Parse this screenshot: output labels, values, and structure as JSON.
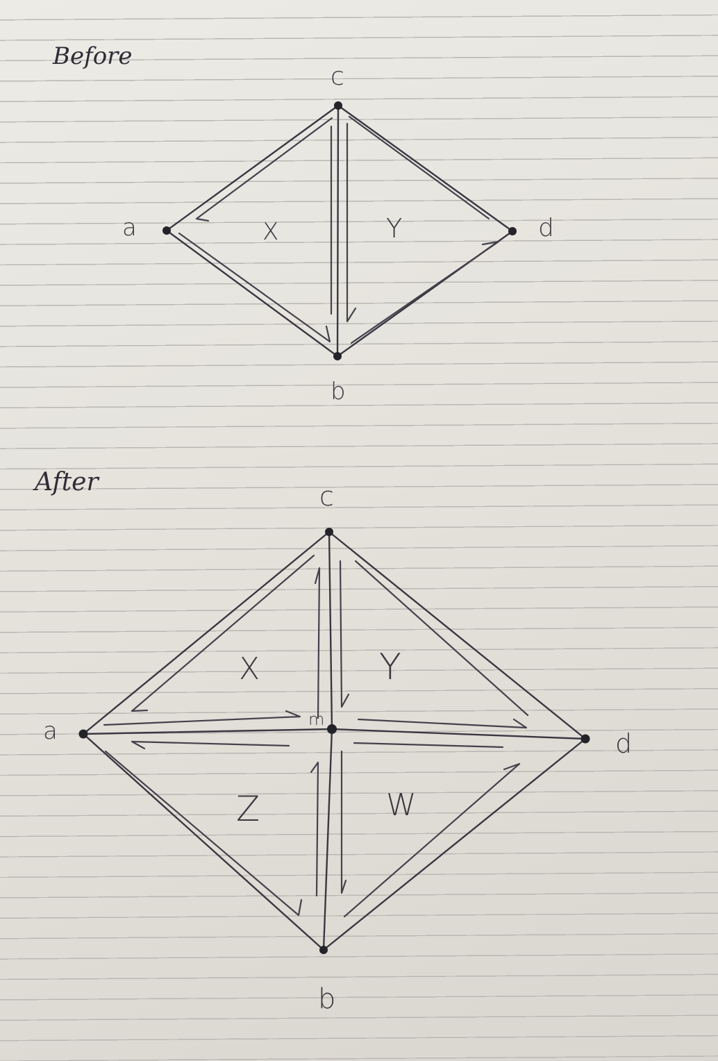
{
  "before": {
    "heading": "Before",
    "vertices": {
      "a": "a",
      "b": "b",
      "c": "c",
      "d": "d"
    },
    "faces": {
      "x": "X",
      "y": "Y"
    }
  },
  "after": {
    "heading": "After",
    "vertices": {
      "a": "a",
      "b": "b",
      "c": "c",
      "d": "d",
      "m": "m"
    },
    "faces": {
      "x": "X",
      "y": "Y",
      "z": "Z",
      "w": "W"
    }
  },
  "colors": {
    "ink": "#3a3742",
    "paper": "#e6e3dc",
    "rule": "#b9b7b3"
  }
}
